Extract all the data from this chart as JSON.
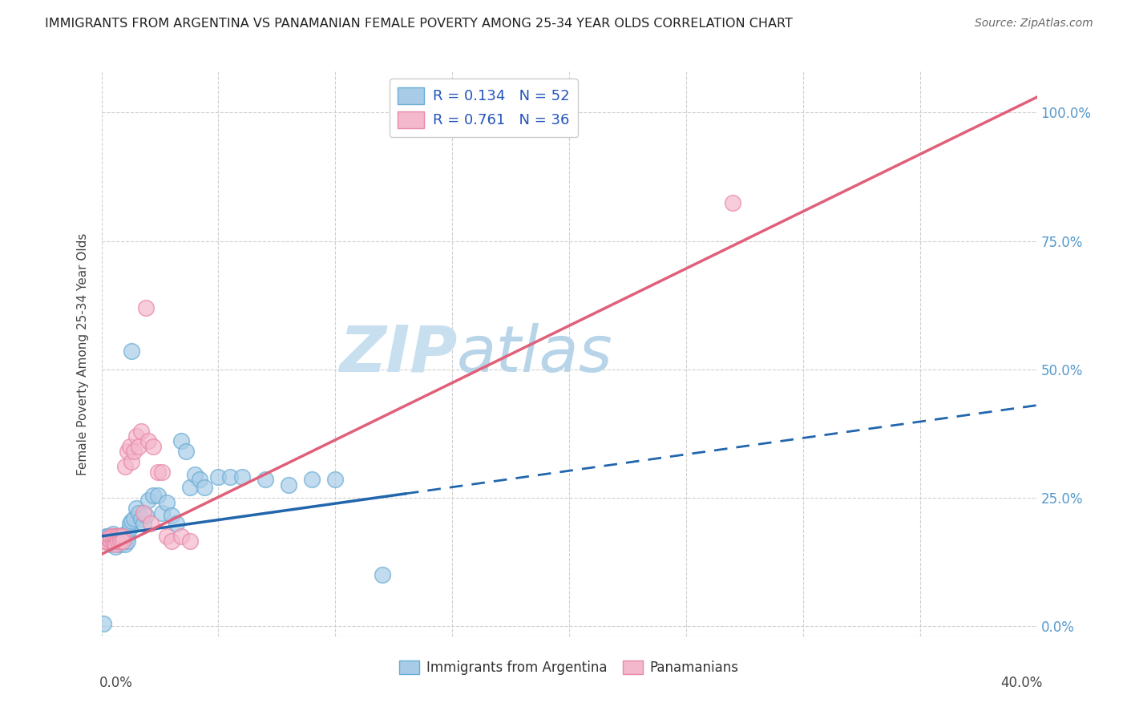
{
  "title": "IMMIGRANTS FROM ARGENTINA VS PANAMANIAN FEMALE POVERTY AMONG 25-34 YEAR OLDS CORRELATION CHART",
  "source": "Source: ZipAtlas.com",
  "ylabel": "Female Poverty Among 25-34 Year Olds",
  "ytick_labels": [
    "0.0%",
    "25.0%",
    "50.0%",
    "75.0%",
    "100.0%"
  ],
  "ytick_values": [
    0.0,
    0.25,
    0.5,
    0.75,
    1.0
  ],
  "xlim": [
    0.0,
    0.4
  ],
  "ylim": [
    -0.02,
    1.08
  ],
  "legend_label1": "Immigrants from Argentina",
  "legend_label2": "Panamanians",
  "blue_scatter_color": "#a8cce8",
  "blue_edge_color": "#6aadd5",
  "pink_scatter_color": "#f4b8cc",
  "pink_edge_color": "#e888a8",
  "blue_line_color": "#2166ac",
  "pink_line_color": "#e0607a",
  "blue_line_solid_end": 0.13,
  "blue_line_x0": 0.0,
  "blue_line_y0": 0.175,
  "blue_line_y_at_end": 0.28,
  "blue_line_y_at_40": 0.43,
  "pink_line_x0": 0.0,
  "pink_line_y0": 0.14,
  "pink_line_y_at_40": 1.03,
  "watermark_zip": "ZIP",
  "watermark_atlas": "atlas",
  "watermark_color": "#cce0f0",
  "background_color": "#ffffff",
  "grid_color": "#d0d0d0",
  "blue_x": [
    0.002,
    0.003,
    0.004,
    0.004,
    0.005,
    0.005,
    0.006,
    0.006,
    0.006,
    0.007,
    0.007,
    0.008,
    0.008,
    0.008,
    0.009,
    0.009,
    0.01,
    0.01,
    0.011,
    0.011,
    0.012,
    0.012,
    0.013,
    0.014,
    0.015,
    0.016,
    0.017,
    0.018,
    0.019,
    0.02,
    0.022,
    0.024,
    0.026,
    0.028,
    0.03,
    0.032,
    0.034,
    0.036,
    0.038,
    0.04,
    0.042,
    0.044,
    0.05,
    0.055,
    0.06,
    0.07,
    0.08,
    0.09,
    0.1,
    0.12,
    0.013,
    0.001
  ],
  "blue_y": [
    0.175,
    0.175,
    0.16,
    0.175,
    0.18,
    0.165,
    0.17,
    0.175,
    0.155,
    0.175,
    0.165,
    0.175,
    0.16,
    0.17,
    0.175,
    0.165,
    0.18,
    0.16,
    0.175,
    0.165,
    0.19,
    0.2,
    0.205,
    0.21,
    0.23,
    0.22,
    0.21,
    0.2,
    0.215,
    0.245,
    0.255,
    0.255,
    0.22,
    0.24,
    0.215,
    0.2,
    0.36,
    0.34,
    0.27,
    0.295,
    0.285,
    0.27,
    0.29,
    0.29,
    0.29,
    0.285,
    0.275,
    0.285,
    0.285,
    0.1,
    0.535,
    0.005
  ],
  "pink_x": [
    0.001,
    0.002,
    0.003,
    0.004,
    0.004,
    0.005,
    0.005,
    0.006,
    0.006,
    0.006,
    0.007,
    0.007,
    0.008,
    0.008,
    0.009,
    0.009,
    0.01,
    0.011,
    0.012,
    0.013,
    0.014,
    0.015,
    0.016,
    0.017,
    0.018,
    0.019,
    0.02,
    0.022,
    0.024,
    0.026,
    0.028,
    0.03,
    0.034,
    0.038,
    0.27,
    0.021
  ],
  "pink_y": [
    0.165,
    0.165,
    0.17,
    0.165,
    0.175,
    0.165,
    0.175,
    0.165,
    0.175,
    0.16,
    0.175,
    0.165,
    0.175,
    0.165,
    0.175,
    0.165,
    0.31,
    0.34,
    0.35,
    0.32,
    0.34,
    0.37,
    0.35,
    0.38,
    0.22,
    0.62,
    0.36,
    0.35,
    0.3,
    0.3,
    0.175,
    0.165,
    0.175,
    0.165,
    0.825,
    0.2
  ]
}
